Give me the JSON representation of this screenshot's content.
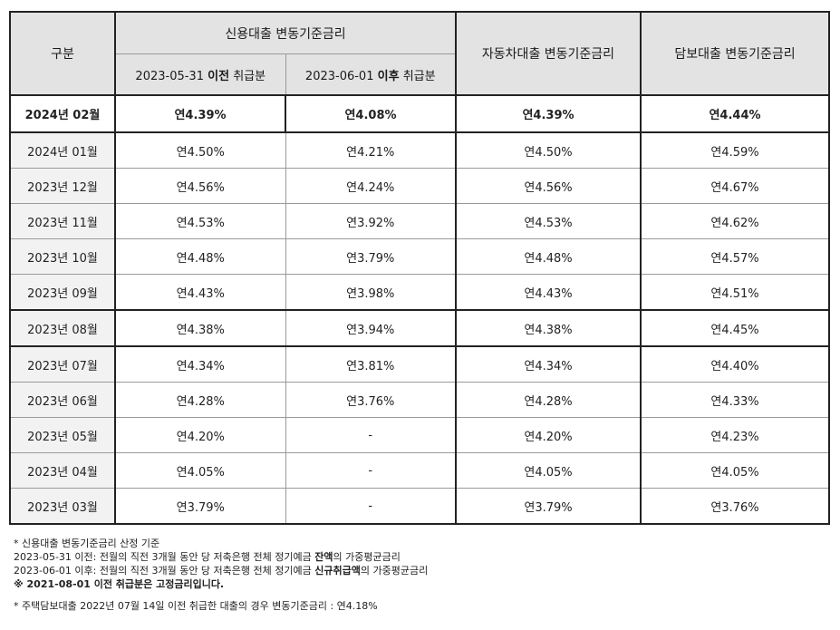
{
  "table": {
    "header": {
      "category": "구분",
      "credit_group": "신용대출 변동기준금리",
      "credit_before": {
        "date": "2023-05-31",
        "emph": "이전",
        "suffix": "취급분"
      },
      "credit_after": {
        "date": "2023-06-01",
        "emph": "이후",
        "suffix": "취급분"
      },
      "auto": "자동차대출 변동기준금리",
      "mortgage": "담보대출 변동기준금리"
    },
    "current": {
      "month": "2024년 02월",
      "credit_before": "연4.39%",
      "credit_after": "연4.08%",
      "auto": "연4.39%",
      "mortgage": "연4.44%"
    },
    "rows": [
      {
        "month": "2024년 01월",
        "credit_before": "연4.50%",
        "credit_after": "연4.21%",
        "auto": "연4.50%",
        "mortgage": "연4.59%"
      },
      {
        "month": "2023년 12월",
        "credit_before": "연4.56%",
        "credit_after": "연4.24%",
        "auto": "연4.56%",
        "mortgage": "연4.67%"
      },
      {
        "month": "2023년 11월",
        "credit_before": "연4.53%",
        "credit_after": "연3.92%",
        "auto": "연4.53%",
        "mortgage": "연4.62%"
      },
      {
        "month": "2023년 10월",
        "credit_before": "연4.48%",
        "credit_after": "연3.79%",
        "auto": "연4.48%",
        "mortgage": "연4.57%"
      },
      {
        "month": "2023년 09월",
        "credit_before": "연4.43%",
        "credit_after": "연3.98%",
        "auto": "연4.43%",
        "mortgage": "연4.51%"
      },
      {
        "month": "2023년 08월",
        "credit_before": "연4.38%",
        "credit_after": "연3.94%",
        "auto": "연4.38%",
        "mortgage": "연4.45%"
      },
      {
        "month": "2023년 07월",
        "credit_before": "연4.34%",
        "credit_after": "연3.81%",
        "auto": "연4.34%",
        "mortgage": "연4.40%"
      },
      {
        "month": "2023년 06월",
        "credit_before": "연4.28%",
        "credit_after": "연3.76%",
        "auto": "연4.28%",
        "mortgage": "연4.33%"
      },
      {
        "month": "2023년 05월",
        "credit_before": "연4.20%",
        "credit_after": "-",
        "auto": "연4.20%",
        "mortgage": "연4.23%"
      },
      {
        "month": "2023년 04월",
        "credit_before": "연4.05%",
        "credit_after": "-",
        "auto": "연4.05%",
        "mortgage": "연4.05%"
      },
      {
        "month": "2023년 03월",
        "credit_before": "연3.79%",
        "credit_after": "-",
        "auto": "연3.79%",
        "mortgage": "연3.76%"
      }
    ]
  },
  "notes": {
    "line1": "* 신용대출 변동기준금리 산정 기준",
    "line2": {
      "prefix": "2023-05-31 이전: 전월의 직전 3개월 동안 당 저축은행 전체 정기예금 ",
      "emph": "잔액",
      "suffix": "의 가중평균금리"
    },
    "line3": {
      "prefix": "2023-06-01 이후: 전월의 직전 3개월 동안 당 저축은행 전체 정기예금 ",
      "emph": "신규취급액",
      "suffix": "의 가중평균금리"
    },
    "line4": "※ 2021-08-01 이전 취급분은 고정금리입니다.",
    "line5": "* 주택담보대출 2022년 07월 14일 이전 취급한 대출의 경우 변동기준금리 : 연4.18%"
  }
}
